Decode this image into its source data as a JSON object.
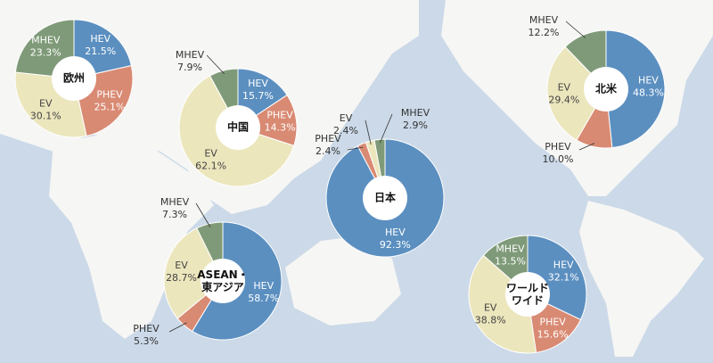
{
  "chart_data": [
    {
      "type": "pie",
      "title": "欧州",
      "categories": [
        "HEV",
        "PHEV",
        "EV",
        "MHEV"
      ],
      "values": [
        21.5,
        25.1,
        30.1,
        23.3
      ],
      "value_labels": [
        "21.5%",
        "25.1%",
        "30.1%",
        "23.3%"
      ],
      "colors": [
        "#5b8fc0",
        "#d98a73",
        "#ece6bd",
        "#7f9a78"
      ]
    },
    {
      "type": "pie",
      "title": "中国",
      "categories": [
        "HEV",
        "PHEV",
        "EV",
        "MHEV"
      ],
      "values": [
        15.7,
        14.3,
        62.1,
        7.9
      ],
      "value_labels": [
        "15.7%",
        "14.3%",
        "62.1%",
        "7.9%"
      ],
      "colors": [
        "#5b8fc0",
        "#d98a73",
        "#ece6bd",
        "#7f9a78"
      ]
    },
    {
      "type": "pie",
      "title": "日本",
      "categories": [
        "HEV",
        "PHEV",
        "EV",
        "MHEV"
      ],
      "values": [
        92.3,
        2.4,
        2.4,
        2.9
      ],
      "value_labels": [
        "92.3%",
        "2.4%",
        "2.4%",
        "2.9%"
      ],
      "colors": [
        "#5b8fc0",
        "#d98a73",
        "#ece6bd",
        "#7f9a78"
      ]
    },
    {
      "type": "pie",
      "title": "北米",
      "categories": [
        "HEV",
        "PHEV",
        "EV",
        "MHEV"
      ],
      "values": [
        48.3,
        10.0,
        29.4,
        12.2
      ],
      "value_labels": [
        "48.3%",
        "10.0%",
        "29.4%",
        "12.2%"
      ],
      "colors": [
        "#5b8fc0",
        "#d98a73",
        "#ece6bd",
        "#7f9a78"
      ]
    },
    {
      "type": "pie",
      "title": "ASEAN・\n東アジア",
      "categories": [
        "HEV",
        "PHEV",
        "EV",
        "MHEV"
      ],
      "values": [
        58.7,
        5.3,
        28.7,
        7.3
      ],
      "value_labels": [
        "58.7%",
        "5.3%",
        "28.7%",
        "7.3%"
      ],
      "colors": [
        "#5b8fc0",
        "#d98a73",
        "#ece6bd",
        "#7f9a78"
      ]
    },
    {
      "type": "pie",
      "title": "ワールド\nワイド",
      "categories": [
        "HEV",
        "PHEV",
        "EV",
        "MHEV"
      ],
      "values": [
        32.1,
        15.6,
        38.8,
        13.5
      ],
      "value_labels": [
        "32.1%",
        "15.6%",
        "38.8%",
        "13.5%"
      ],
      "colors": [
        "#5b8fc0",
        "#d98a73",
        "#ece6bd",
        "#7f9a78"
      ]
    }
  ]
}
